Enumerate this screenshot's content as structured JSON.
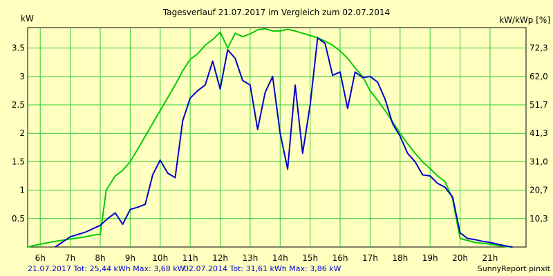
{
  "chart_data": {
    "type": "line",
    "title": "Tagesverlauf 21.07.2017 im Vergleich zum 02.07.2014",
    "ylabel_left": "kW",
    "ylabel_right": "kW/kWp [%]",
    "x_range": [
      5.58,
      22.2
    ],
    "ylim": [
      0,
      3.86
    ],
    "grid": true,
    "x_ticks": [
      {
        "v": 6,
        "label": "6h"
      },
      {
        "v": 7,
        "label": "7h"
      },
      {
        "v": 8,
        "label": "8h"
      },
      {
        "v": 9,
        "label": "9h"
      },
      {
        "v": 10,
        "label": "10h"
      },
      {
        "v": 11,
        "label": "11h"
      },
      {
        "v": 12,
        "label": "12h"
      },
      {
        "v": 13,
        "label": "13h"
      },
      {
        "v": 14,
        "label": "14h"
      },
      {
        "v": 15,
        "label": "15h"
      },
      {
        "v": 16,
        "label": "16h"
      },
      {
        "v": 17,
        "label": "17h"
      },
      {
        "v": 18,
        "label": "18h"
      },
      {
        "v": 19,
        "label": "19h"
      },
      {
        "v": 20,
        "label": "20h"
      },
      {
        "v": 21,
        "label": "21h"
      }
    ],
    "y_ticks_left": [
      {
        "v": 0.5,
        "label": "0.5"
      },
      {
        "v": 1,
        "label": "1"
      },
      {
        "v": 1.5,
        "label": "1.5"
      },
      {
        "v": 2,
        "label": "2"
      },
      {
        "v": 2.5,
        "label": "2.5"
      },
      {
        "v": 3,
        "label": "3"
      },
      {
        "v": 3.5,
        "label": "3.5"
      }
    ],
    "y_ticks_right": [
      {
        "v": 0.5,
        "label": "10,3"
      },
      {
        "v": 1,
        "label": "20,7"
      },
      {
        "v": 1.5,
        "label": "31,0"
      },
      {
        "v": 2,
        "label": "41,3"
      },
      {
        "v": 2.5,
        "label": "51,7"
      },
      {
        "v": 3,
        "label": "62,0"
      },
      {
        "v": 3.5,
        "label": "72,3"
      }
    ],
    "series": [
      {
        "name": "21.07.2017",
        "color": "#0000cc",
        "x": [
          6.5,
          6.75,
          7.0,
          7.25,
          7.5,
          7.75,
          8.0,
          8.25,
          8.5,
          8.75,
          9.0,
          9.25,
          9.5,
          9.75,
          10.0,
          10.25,
          10.5,
          10.75,
          11.0,
          11.25,
          11.5,
          11.75,
          12.0,
          12.25,
          12.5,
          12.75,
          13.0,
          13.25,
          13.5,
          13.75,
          14.0,
          14.25,
          14.5,
          14.75,
          15.0,
          15.25,
          15.5,
          15.75,
          16.0,
          16.25,
          16.5,
          16.75,
          17.0,
          17.25,
          17.5,
          17.75,
          18.0,
          18.25,
          18.5,
          18.75,
          19.0,
          19.25,
          19.5,
          19.75,
          20.0,
          20.25,
          20.5,
          20.75,
          21.0,
          21.25,
          21.5,
          21.75
        ],
        "values": [
          0.0,
          0.09,
          0.18,
          0.22,
          0.26,
          0.32,
          0.38,
          0.5,
          0.6,
          0.4,
          0.66,
          0.7,
          0.75,
          1.27,
          1.53,
          1.3,
          1.22,
          2.22,
          2.62,
          2.75,
          2.85,
          3.27,
          2.78,
          3.47,
          3.32,
          2.93,
          2.85,
          2.07,
          2.72,
          3.0,
          2.0,
          1.37,
          2.85,
          1.65,
          2.5,
          3.68,
          3.58,
          3.02,
          3.08,
          2.44,
          3.08,
          2.98,
          3.0,
          2.9,
          2.6,
          2.17,
          1.95,
          1.65,
          1.5,
          1.27,
          1.25,
          1.12,
          1.05,
          0.88,
          0.25,
          0.15,
          0.13,
          0.1,
          0.08,
          0.05,
          0.02,
          0.0
        ]
      },
      {
        "name": "02.07.2014",
        "color": "#00cc00",
        "x": [
          5.58,
          6.0,
          6.5,
          7.0,
          7.5,
          7.9,
          8.0,
          8.2,
          8.5,
          8.75,
          9.0,
          9.25,
          9.5,
          10.0,
          10.5,
          10.75,
          11.0,
          11.25,
          11.5,
          11.75,
          12.0,
          12.25,
          12.5,
          12.75,
          13.0,
          13.25,
          13.5,
          13.75,
          14.0,
          14.25,
          14.5,
          14.75,
          15.0,
          15.25,
          15.5,
          15.75,
          16.0,
          16.25,
          16.5,
          16.75,
          17.0,
          17.25,
          17.5,
          17.75,
          18.0,
          18.25,
          18.5,
          18.75,
          19.0,
          19.25,
          19.5,
          19.75,
          20.0,
          20.5,
          21.0,
          21.5,
          21.75
        ],
        "values": [
          0.0,
          0.05,
          0.1,
          0.14,
          0.18,
          0.22,
          0.22,
          1.0,
          1.25,
          1.35,
          1.5,
          1.72,
          1.95,
          2.4,
          2.85,
          3.1,
          3.3,
          3.4,
          3.55,
          3.65,
          3.78,
          3.5,
          3.76,
          3.7,
          3.75,
          3.82,
          3.84,
          3.8,
          3.8,
          3.83,
          3.8,
          3.76,
          3.72,
          3.68,
          3.62,
          3.55,
          3.45,
          3.32,
          3.15,
          3.0,
          2.75,
          2.58,
          2.4,
          2.2,
          2.0,
          1.82,
          1.65,
          1.5,
          1.38,
          1.25,
          1.15,
          0.85,
          0.15,
          0.08,
          0.05,
          0.01,
          0.0
        ]
      }
    ],
    "footer": {
      "left": "21.07.2017 Tot: 25,44 kWh Max: 3,68 kW",
      "middle": "02.07.2014 Tot: 31,61 kWh Max: 3,86 kW",
      "right": "SunnyReport pinxit"
    }
  }
}
